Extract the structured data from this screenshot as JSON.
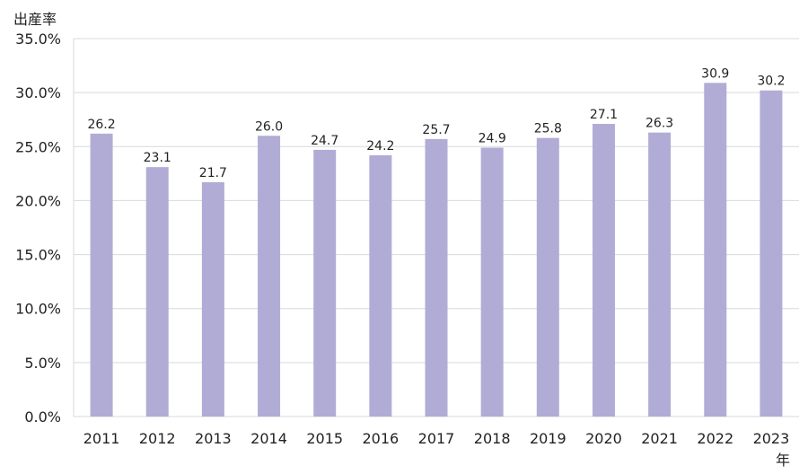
{
  "chart_data": {
    "type": "bar",
    "ylabel": "出産率",
    "xlabel": "年",
    "categories": [
      "2011",
      "2012",
      "2013",
      "2014",
      "2015",
      "2016",
      "2017",
      "2018",
      "2019",
      "2020",
      "2021",
      "2022",
      "2023"
    ],
    "values": [
      26.2,
      23.1,
      21.7,
      26.0,
      24.7,
      24.2,
      25.7,
      24.9,
      25.8,
      27.1,
      26.3,
      30.9,
      30.2
    ],
    "value_labels": [
      "26.2",
      "23.1",
      "21.7",
      "26.0",
      "24.7",
      "24.2",
      "25.7",
      "24.9",
      "25.8",
      "27.1",
      "26.3",
      "30.9",
      "30.2"
    ],
    "ylim": [
      0,
      35
    ],
    "y_ticks": [
      "0.0%",
      "5.0%",
      "10.0%",
      "15.0%",
      "20.0%",
      "25.0%",
      "30.0%",
      "35.0%"
    ],
    "grid": true,
    "bar_color": "#b1acd6",
    "grid_color": "#d9d9d9"
  }
}
